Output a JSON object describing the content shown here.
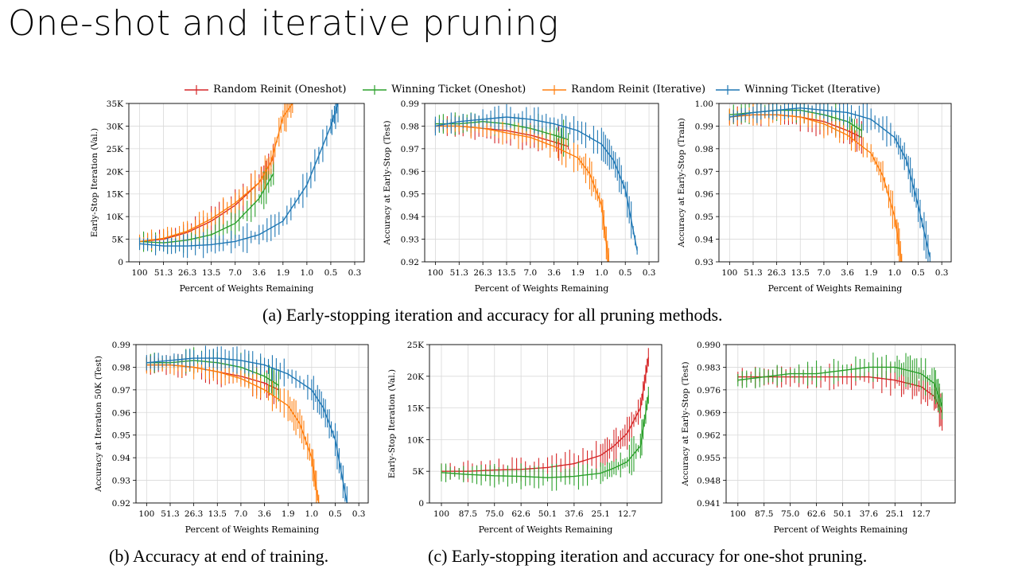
{
  "slide": {
    "title": "One-shot and iterative pruning"
  },
  "legend": [
    {
      "label": "Random Reinit (Oneshot)",
      "color": "#d62728"
    },
    {
      "label": "Winning Ticket (Oneshot)",
      "color": "#2ca02c"
    },
    {
      "label": "Random Reinit (Iterative)",
      "color": "#ff7f0e"
    },
    {
      "label": "Winning Ticket (Iterative)",
      "color": "#1f77b4"
    }
  ],
  "captions": {
    "a": "(a) Early-stopping iteration and accuracy for all pruning methods.",
    "b": "(b) Accuracy at end of training.",
    "c": "(c) Early-stopping iteration and accuracy for one-shot pruning."
  },
  "chart_data": [
    {
      "id": "a1",
      "type": "line",
      "xlabel": "Percent of Weights Remaining",
      "ylabel": "Early-Stop Iteration (Val.)",
      "x_ticks": [
        "100",
        "51.3",
        "26.3",
        "13.5",
        "7.0",
        "3.6",
        "1.9",
        "1.0",
        "0.5",
        "0.3"
      ],
      "y_ticks": [
        "0",
        "5K",
        "10K",
        "15K",
        "20K",
        "25K",
        "30K",
        "35K"
      ],
      "ylim": [
        0,
        35000
      ],
      "grid": true,
      "series": [
        {
          "name": "Random Reinit (Oneshot)",
          "color": "#d62728",
          "x": [
            0,
            1,
            2,
            3,
            4,
            5,
            5.6
          ],
          "y": [
            4500,
            5000,
            6500,
            9000,
            12500,
            17500,
            23000
          ]
        },
        {
          "name": "Winning Ticket (Oneshot)",
          "color": "#2ca02c",
          "x": [
            0,
            1,
            2,
            3,
            4,
            5,
            5.6
          ],
          "y": [
            4500,
            4200,
            4800,
            6000,
            8500,
            14000,
            19500
          ]
        },
        {
          "name": "Random Reinit (Iterative)",
          "color": "#ff7f0e",
          "x": [
            0,
            1,
            2,
            3,
            4,
            5,
            5.5,
            6,
            6.4
          ],
          "y": [
            4500,
            5200,
            6800,
            9500,
            13000,
            17500,
            22000,
            32000,
            35000
          ]
        },
        {
          "name": "Winning Ticket (Iterative)",
          "color": "#1f77b4",
          "x": [
            0,
            1,
            2,
            3,
            4,
            5,
            6,
            7,
            8,
            8.3
          ],
          "y": [
            4000,
            3500,
            3500,
            3800,
            4500,
            6000,
            9000,
            17000,
            30000,
            35000
          ]
        }
      ]
    },
    {
      "id": "a2",
      "type": "line",
      "xlabel": "Percent of Weights Remaining",
      "ylabel": "Accuracy at Early-Stop (Test)",
      "x_ticks": [
        "100",
        "51.3",
        "26.3",
        "13.5",
        "7.0",
        "3.6",
        "1.9",
        "1.0",
        "0.5",
        "0.3"
      ],
      "y_ticks": [
        "0.92",
        "0.93",
        "0.94",
        "0.95",
        "0.96",
        "0.97",
        "0.98",
        "0.99"
      ],
      "ylim": [
        0.92,
        0.99
      ],
      "grid": true,
      "series": [
        {
          "name": "Random Reinit (Oneshot)",
          "color": "#d62728",
          "x": [
            0,
            1,
            2,
            3,
            4,
            5,
            5.6
          ],
          "y": [
            0.98,
            0.98,
            0.979,
            0.978,
            0.976,
            0.973,
            0.971
          ]
        },
        {
          "name": "Winning Ticket (Oneshot)",
          "color": "#2ca02c",
          "x": [
            0,
            1,
            2,
            3,
            4,
            5,
            5.6
          ],
          "y": [
            0.981,
            0.981,
            0.982,
            0.981,
            0.979,
            0.976,
            0.974
          ]
        },
        {
          "name": "Random Reinit (Iterative)",
          "color": "#ff7f0e",
          "x": [
            0,
            1,
            2,
            3,
            4,
            5,
            6,
            6.5,
            7,
            7.3
          ],
          "y": [
            0.98,
            0.98,
            0.979,
            0.977,
            0.975,
            0.971,
            0.966,
            0.959,
            0.945,
            0.92
          ]
        },
        {
          "name": "Winning Ticket (Iterative)",
          "color": "#1f77b4",
          "x": [
            0,
            1,
            2,
            3,
            4,
            5,
            6,
            7,
            7.5,
            8,
            8.5
          ],
          "y": [
            0.98,
            0.982,
            0.983,
            0.984,
            0.983,
            0.981,
            0.978,
            0.972,
            0.965,
            0.952,
            0.925
          ]
        }
      ]
    },
    {
      "id": "a3",
      "type": "line",
      "xlabel": "Percent of Weights Remaining",
      "ylabel": "Accuracy at Early-Stop (Train)",
      "x_ticks": [
        "100",
        "51.3",
        "26.3",
        "13.5",
        "7.0",
        "3.6",
        "1.9",
        "1.0",
        "0.5",
        "0.3"
      ],
      "y_ticks": [
        "0.93",
        "0.94",
        "0.95",
        "0.96",
        "0.97",
        "0.98",
        "0.99",
        "1.00"
      ],
      "ylim": [
        0.93,
        1.0
      ],
      "grid": true,
      "series": [
        {
          "name": "Random Reinit (Oneshot)",
          "color": "#d62728",
          "x": [
            0,
            1,
            2,
            3,
            4,
            5,
            5.6
          ],
          "y": [
            0.994,
            0.995,
            0.995,
            0.994,
            0.992,
            0.988,
            0.985
          ]
        },
        {
          "name": "Winning Ticket (Oneshot)",
          "color": "#2ca02c",
          "x": [
            0,
            1,
            2,
            3,
            4,
            5,
            5.6
          ],
          "y": [
            0.995,
            0.996,
            0.997,
            0.997,
            0.995,
            0.992,
            0.988
          ]
        },
        {
          "name": "Random Reinit (Iterative)",
          "color": "#ff7f0e",
          "x": [
            0,
            1,
            2,
            3,
            4,
            5,
            6,
            6.5,
            7,
            7.3
          ],
          "y": [
            0.994,
            0.995,
            0.995,
            0.994,
            0.991,
            0.986,
            0.978,
            0.968,
            0.95,
            0.93
          ]
        },
        {
          "name": "Winning Ticket (Iterative)",
          "color": "#1f77b4",
          "x": [
            0,
            1,
            2,
            3,
            4,
            5,
            6,
            7,
            7.5,
            8,
            8.5
          ],
          "y": [
            0.994,
            0.996,
            0.997,
            0.998,
            0.997,
            0.996,
            0.993,
            0.985,
            0.975,
            0.955,
            0.932
          ]
        }
      ]
    },
    {
      "id": "b",
      "type": "line",
      "xlabel": "Percent of Weights Remaining",
      "ylabel": "Accuracy at Iteration 50K (Test)",
      "x_ticks": [
        "100",
        "51.3",
        "26.3",
        "13.5",
        "7.0",
        "3.6",
        "1.9",
        "1.0",
        "0.5",
        "0.3"
      ],
      "y_ticks": [
        "0.92",
        "0.93",
        "0.94",
        "0.95",
        "0.96",
        "0.97",
        "0.98",
        "0.99"
      ],
      "ylim": [
        0.92,
        0.99
      ],
      "grid": true,
      "series": [
        {
          "name": "Random Reinit (Oneshot)",
          "color": "#d62728",
          "x": [
            0,
            1,
            2,
            3,
            4,
            5,
            5.6
          ],
          "y": [
            0.981,
            0.981,
            0.98,
            0.978,
            0.976,
            0.973,
            0.97
          ]
        },
        {
          "name": "Winning Ticket (Oneshot)",
          "color": "#2ca02c",
          "x": [
            0,
            1,
            2,
            3,
            4,
            5,
            5.6
          ],
          "y": [
            0.982,
            0.982,
            0.983,
            0.982,
            0.98,
            0.976,
            0.972
          ]
        },
        {
          "name": "Random Reinit (Iterative)",
          "color": "#ff7f0e",
          "x": [
            0,
            1,
            2,
            3,
            4,
            5,
            6,
            6.5,
            7,
            7.3
          ],
          "y": [
            0.981,
            0.981,
            0.98,
            0.978,
            0.975,
            0.97,
            0.963,
            0.955,
            0.94,
            0.92
          ]
        },
        {
          "name": "Winning Ticket (Iterative)",
          "color": "#1f77b4",
          "x": [
            0,
            1,
            2,
            3,
            4,
            5,
            6,
            7,
            7.5,
            8,
            8.5
          ],
          "y": [
            0.982,
            0.983,
            0.984,
            0.984,
            0.983,
            0.981,
            0.977,
            0.97,
            0.962,
            0.948,
            0.92
          ]
        }
      ]
    },
    {
      "id": "c1",
      "type": "line",
      "xlabel": "Percent of Weights Remaining",
      "ylabel": "Early-Stop Iteration (Val.)",
      "x_ticks": [
        "100",
        "87.5",
        "75.0",
        "62.6",
        "50.1",
        "37.6",
        "25.1",
        "12.7"
      ],
      "y_ticks": [
        "0",
        "5K",
        "10K",
        "15K",
        "20K",
        "25K"
      ],
      "ylim": [
        0,
        25000
      ],
      "grid": true,
      "series": [
        {
          "name": "Random Reinit (Oneshot)",
          "color": "#d62728",
          "x": [
            0,
            1,
            2,
            3,
            4,
            5,
            6,
            6.5,
            7,
            7.5,
            7.8
          ],
          "y": [
            5000,
            5000,
            5200,
            5300,
            5600,
            6200,
            7500,
            9000,
            11000,
            15000,
            23000
          ]
        },
        {
          "name": "Winning Ticket (Oneshot)",
          "color": "#2ca02c",
          "x": [
            0,
            1,
            2,
            3,
            4,
            5,
            6,
            6.5,
            7,
            7.5,
            7.8
          ],
          "y": [
            4800,
            4500,
            4300,
            4200,
            4000,
            4200,
            4700,
            5500,
            6500,
            9000,
            17000
          ]
        }
      ]
    },
    {
      "id": "c2",
      "type": "line",
      "xlabel": "Percent of Weights Remaining",
      "ylabel": "Accuracy at Early-Stop (Test)",
      "x_ticks": [
        "100",
        "87.5",
        "75.0",
        "62.6",
        "50.1",
        "37.6",
        "25.1",
        "12.7"
      ],
      "y_ticks": [
        "0.941",
        "0.948",
        "0.955",
        "0.962",
        "0.969",
        "0.976",
        "0.983",
        "0.990"
      ],
      "ylim": [
        0.941,
        0.99
      ],
      "grid": true,
      "series": [
        {
          "name": "Random Reinit (Oneshot)",
          "color": "#d62728",
          "x": [
            0,
            1,
            2,
            3,
            4,
            5,
            6,
            6.5,
            7,
            7.5,
            7.8
          ],
          "y": [
            0.98,
            0.98,
            0.98,
            0.98,
            0.98,
            0.98,
            0.979,
            0.978,
            0.977,
            0.974,
            0.969
          ]
        },
        {
          "name": "Winning Ticket (Oneshot)",
          "color": "#2ca02c",
          "x": [
            0,
            1,
            2,
            3,
            4,
            5,
            6,
            6.5,
            7,
            7.5,
            7.8
          ],
          "y": [
            0.979,
            0.98,
            0.981,
            0.981,
            0.982,
            0.983,
            0.983,
            0.982,
            0.981,
            0.978,
            0.971
          ]
        }
      ]
    }
  ]
}
